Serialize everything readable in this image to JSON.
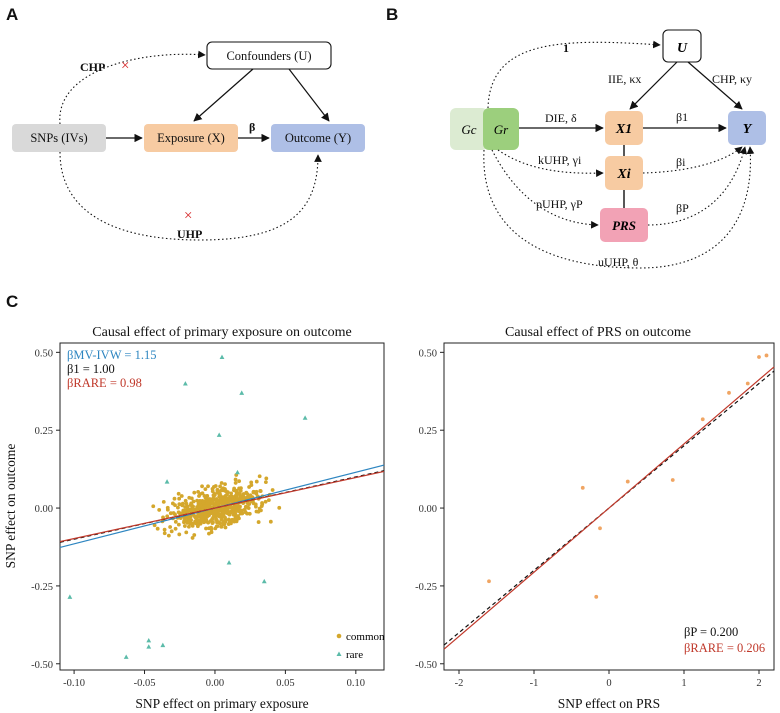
{
  "panels": {
    "a": "A",
    "b": "B",
    "c": "C"
  },
  "panel_a": {
    "confounders": "Confounders (U)",
    "snps": "SNPs (IVs)",
    "exposure": "Exposure (X)",
    "outcome": "Outcome (Y)",
    "beta": "β",
    "chp": "CHP",
    "uhp": "UHP",
    "cross": "×"
  },
  "panel_b": {
    "u": "U",
    "x1": "X1",
    "xi": "Xi",
    "prs": "PRS",
    "y": "Y",
    "gc": "Gc",
    "gr": "Gr",
    "one": "1",
    "iie": "IIE, κx",
    "chp": "CHP, κy",
    "die": "DIE, δ",
    "beta1": "β1",
    "kuhp": "kUHP, γi",
    "betai": "βi",
    "puhp": "pUHP, γP",
    "betap": "βP",
    "uuhp": "uUHP, θ"
  },
  "colors": {
    "common": "#d4a72c",
    "rare": "#5bbba9",
    "mvivw": "#2e86c1",
    "rareline": "#c0392b",
    "exposure": "#f7cba2",
    "outcome": "#aebfe6",
    "snps": "#d9d9d9",
    "prs": "#f2a2b5",
    "gc": "#dcebd2",
    "gr": "#9ccf7d"
  },
  "chart_data": [
    {
      "type": "scatter",
      "title": "Causal effect of primary exposure on outcome",
      "xlabel": "SNP effect on primary exposure",
      "ylabel": "SNP effect on outcome",
      "xlim": [
        -0.11,
        0.12
      ],
      "ylim": [
        -0.52,
        0.53
      ],
      "xticks": [
        -0.1,
        -0.05,
        0.0,
        0.05,
        0.1
      ],
      "xtick_labels": [
        "-0.10",
        "-0.05",
        "0.00",
        "0.05",
        "0.10"
      ],
      "yticks": [
        -0.5,
        -0.25,
        0.0,
        0.25,
        0.5
      ],
      "ytick_labels": [
        "-0.50",
        "-0.25",
        "0.00",
        "0.25",
        "0.50"
      ],
      "legend": [
        "common",
        "rare"
      ],
      "legend_position": "bottom-right",
      "annotations": [
        {
          "label": "βMV-IVW = 1.15",
          "color": "#2e86c1"
        },
        {
          "label": "β1 = 1.00",
          "color": "#111111"
        },
        {
          "label": "βRARE = 0.98",
          "color": "#c0392b"
        }
      ],
      "lines": [
        {
          "name": "MV-IVW",
          "slope": 1.15,
          "intercept": 0.0,
          "color": "#2e86c1",
          "dash": false
        },
        {
          "name": "true beta1",
          "slope": 1.0,
          "intercept": 0.0,
          "color": "#111111",
          "dash": true
        },
        {
          "name": "RARE",
          "slope": 0.98,
          "intercept": 0.0,
          "color": "#c0392b",
          "dash": false
        }
      ],
      "common_cloud": {
        "count": 620,
        "x_range": [
          -0.085,
          0.105
        ],
        "slope": 1.0,
        "noise_sd": 0.045
      },
      "rare_points": [
        [
          -0.103,
          -0.285
        ],
        [
          -0.063,
          -0.478
        ],
        [
          -0.047,
          -0.425
        ],
        [
          -0.047,
          -0.445
        ],
        [
          -0.037,
          -0.44
        ],
        [
          -0.021,
          0.4
        ],
        [
          0.005,
          0.485
        ],
        [
          0.019,
          0.37
        ],
        [
          0.003,
          0.235
        ],
        [
          0.016,
          0.115
        ],
        [
          -0.034,
          0.085
        ],
        [
          0.01,
          -0.175
        ],
        [
          0.035,
          -0.235
        ],
        [
          0.064,
          0.29
        ]
      ]
    },
    {
      "type": "scatter",
      "title": "Causal effect of PRS on outcome",
      "xlabel": "SNP effect on PRS",
      "ylabel": "",
      "xlim": [
        -2.2,
        2.2
      ],
      "ylim": [
        -0.52,
        0.53
      ],
      "xticks": [
        -2,
        -1,
        0,
        1,
        2
      ],
      "xtick_labels": [
        "-2",
        "-1",
        "0",
        "1",
        "2"
      ],
      "yticks": [
        -0.5,
        -0.25,
        0.0,
        0.25,
        0.5
      ],
      "ytick_labels": [
        "-0.50",
        "-0.25",
        "0.00",
        "0.25",
        "0.50"
      ],
      "annotations": [
        {
          "label": "βP = 0.200",
          "color": "#111111"
        },
        {
          "label": "βRARE = 0.206",
          "color": "#c0392b"
        }
      ],
      "lines": [
        {
          "name": "true betaP",
          "slope": 0.2,
          "intercept": 0.0,
          "color": "#111111",
          "dash": true
        },
        {
          "name": "RARE",
          "slope": 0.206,
          "intercept": 0.0,
          "color": "#c0392b",
          "dash": false
        }
      ],
      "points": [
        [
          -1.6,
          -0.235
        ],
        [
          -0.35,
          0.065
        ],
        [
          -0.17,
          -0.285
        ],
        [
          -0.12,
          -0.065
        ],
        [
          0.25,
          0.085
        ],
        [
          0.85,
          0.09
        ],
        [
          1.25,
          0.285
        ],
        [
          1.6,
          0.37
        ],
        [
          1.85,
          0.4
        ],
        [
          2.0,
          0.485
        ],
        [
          2.1,
          0.49
        ]
      ],
      "point_color": "#f0a563"
    }
  ]
}
